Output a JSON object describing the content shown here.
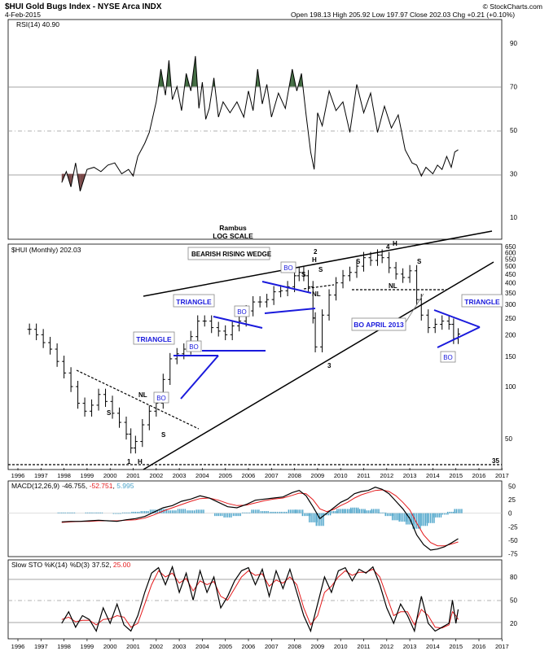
{
  "header": {
    "symbol_title": "$HUI Gold Bugs Index - NYSE Arca INDX",
    "date": "4-Feb-2015",
    "ohlc": "Open 198.13  High 205.92  Low 197.97  Close 202.03  Chg +0.21 (+0.10%)",
    "credit": "© StockCharts.com"
  },
  "colors": {
    "price": "#000000",
    "trendline": "#000000",
    "pattern": "#1a1adc",
    "rsi_overbought_fill": "#3f6a3f",
    "rsi_oversold_fill": "#7a4a4a",
    "macd_signal": "#e41a1c",
    "histogram": "#4aa3c9",
    "sto_d": "#e41a1c"
  },
  "chart_data": [
    {
      "type": "line",
      "panel": "rsi",
      "title": "RSI(14) 40.90",
      "ylim": [
        0,
        100
      ],
      "yticks": [
        10,
        30,
        50,
        70,
        90
      ],
      "reference_lines": [
        30,
        50,
        70
      ],
      "x": [
        1997.9,
        1998.1,
        1998.3,
        1998.5,
        1998.7,
        1999.0,
        1999.3,
        1999.6,
        1999.9,
        2000.2,
        2000.5,
        2000.8,
        2001.0,
        2001.2,
        2001.5,
        2001.7,
        2002.0,
        2002.2,
        2002.4,
        2002.55,
        2002.7,
        2002.9,
        2003.1,
        2003.3,
        2003.5,
        2003.7,
        2003.85,
        2004.0,
        2004.15,
        2004.3,
        2004.5,
        2004.7,
        2004.9,
        2005.2,
        2005.5,
        2005.8,
        2006.0,
        2006.2,
        2006.4,
        2006.6,
        2006.8,
        2007.0,
        2007.3,
        2007.6,
        2007.9,
        2008.1,
        2008.3,
        2008.5,
        2008.7,
        2008.85,
        2009.0,
        2009.2,
        2009.5,
        2009.8,
        2010.1,
        2010.4,
        2010.7,
        2011.0,
        2011.3,
        2011.6,
        2011.9,
        2012.2,
        2012.5,
        2012.8,
        2013.1,
        2013.3,
        2013.5,
        2013.7,
        2014.0,
        2014.2,
        2014.4,
        2014.6,
        2014.8,
        2014.95,
        2015.1
      ],
      "values": [
        26,
        31,
        24,
        35,
        22,
        32,
        33,
        31,
        34,
        35,
        30,
        32,
        29,
        38,
        44,
        49,
        63,
        78,
        66,
        82,
        64,
        70,
        59,
        76,
        68,
        84,
        60,
        72,
        55,
        60,
        74,
        56,
        63,
        58,
        63,
        56,
        68,
        59,
        78,
        62,
        71,
        56,
        67,
        60,
        78,
        68,
        76,
        57,
        40,
        32,
        58,
        52,
        68,
        59,
        63,
        49,
        71,
        58,
        67,
        49,
        61,
        51,
        57,
        41,
        35,
        34,
        29,
        33,
        30,
        34,
        32,
        38,
        33,
        40,
        41
      ]
    },
    {
      "type": "bar",
      "panel": "price",
      "title": "$HUI (Monthly) 202.03",
      "scale": "log",
      "ylim": [
        33,
        650
      ],
      "yticks": [
        50,
        100,
        150,
        200,
        250,
        300,
        350,
        400,
        450,
        500,
        550,
        600,
        650
      ],
      "x": [
        1996.5,
        1996.8,
        1997.1,
        1997.4,
        1997.7,
        1998.0,
        1998.3,
        1998.6,
        1998.9,
        1999.2,
        1999.5,
        1999.8,
        2000.1,
        2000.4,
        2000.7,
        2000.9,
        2001.1,
        2001.4,
        2001.7,
        2002.0,
        2002.3,
        2002.6,
        2002.9,
        2003.2,
        2003.5,
        2003.8,
        2004.1,
        2004.4,
        2004.7,
        2005.0,
        2005.3,
        2005.6,
        2005.9,
        2006.2,
        2006.5,
        2006.8,
        2007.1,
        2007.4,
        2007.7,
        2008.0,
        2008.2,
        2008.4,
        2008.6,
        2008.8,
        2008.9,
        2009.2,
        2009.5,
        2009.8,
        2010.1,
        2010.4,
        2010.7,
        2011.0,
        2011.3,
        2011.6,
        2011.8,
        2012.1,
        2012.4,
        2012.7,
        2013.0,
        2013.3,
        2013.5,
        2013.8,
        2014.1,
        2014.4,
        2014.7,
        2014.9,
        2015.1
      ],
      "values": [
        215,
        200,
        180,
        165,
        140,
        120,
        100,
        80,
        72,
        78,
        90,
        82,
        70,
        62,
        53,
        44,
        48,
        60,
        72,
        80,
        110,
        145,
        155,
        165,
        195,
        240,
        240,
        220,
        210,
        200,
        225,
        240,
        275,
        310,
        310,
        320,
        355,
        360,
        380,
        440,
        460,
        440,
        380,
        250,
        170,
        260,
        340,
        400,
        440,
        460,
        500,
        560,
        540,
        580,
        560,
        490,
        450,
        430,
        470,
        320,
        260,
        220,
        230,
        240,
        230,
        190,
        202
      ]
    },
    {
      "type": "line",
      "panel": "macd",
      "title": "MACD(12,26,9) -46.755, -52.751, 5.995",
      "series": [
        {
          "name": "MACD(12,26,9)",
          "value_label": "-46.755"
        },
        {
          "name": "",
          "value_label": "-52.751"
        },
        {
          "name": "",
          "value_label": "5.995"
        }
      ],
      "ylim": [
        -80,
        55
      ],
      "yticks": [
        50,
        25,
        0,
        -25,
        -50,
        -75
      ],
      "x": [
        1997.9,
        1998.3,
        1998.7,
        1999.1,
        1999.5,
        1999.9,
        2000.3,
        2000.7,
        2001.1,
        2001.5,
        2001.9,
        2002.3,
        2002.7,
        2003.1,
        2003.5,
        2003.9,
        2004.3,
        2004.7,
        2005.1,
        2005.5,
        2005.9,
        2006.3,
        2006.7,
        2007.1,
        2007.5,
        2007.9,
        2008.2,
        2008.5,
        2008.8,
        2009.1,
        2009.4,
        2009.7,
        2010.0,
        2010.3,
        2010.6,
        2010.9,
        2011.2,
        2011.5,
        2011.8,
        2012.1,
        2012.4,
        2012.7,
        2013.0,
        2013.3,
        2013.6,
        2013.9,
        2014.2,
        2014.5,
        2014.8,
        2015.1
      ],
      "values": [
        -16,
        -15,
        -15,
        -14,
        -13,
        -14,
        -15,
        -12,
        -10,
        -6,
        2,
        10,
        14,
        22,
        26,
        32,
        28,
        20,
        12,
        10,
        16,
        24,
        26,
        28,
        30,
        38,
        42,
        32,
        12,
        -10,
        0,
        10,
        20,
        26,
        36,
        40,
        42,
        48,
        44,
        36,
        22,
        8,
        -10,
        -40,
        -58,
        -68,
        -66,
        -62,
        -55,
        -47
      ],
      "signal": [
        -17,
        -16,
        -15,
        -15,
        -14,
        -14,
        -14,
        -13,
        -12,
        -9,
        -3,
        4,
        10,
        16,
        22,
        27,
        28,
        24,
        18,
        14,
        15,
        19,
        23,
        26,
        28,
        33,
        37,
        36,
        25,
        8,
        3,
        7,
        14,
        20,
        28,
        34,
        38,
        42,
        43,
        40,
        32,
        20,
        6,
        -18,
        -40,
        -54,
        -60,
        -60,
        -57,
        -53
      ],
      "histogram": [
        1,
        1,
        0,
        1,
        1,
        0,
        -1,
        1,
        2,
        3,
        5,
        6,
        4,
        6,
        4,
        5,
        0,
        -4,
        -6,
        -4,
        1,
        5,
        3,
        2,
        2,
        5,
        5,
        -4,
        -13,
        -18,
        -3,
        3,
        6,
        6,
        8,
        6,
        4,
        6,
        1,
        -4,
        -10,
        -12,
        -16,
        -22,
        -18,
        -14,
        -6,
        -2,
        2,
        6
      ]
    },
    {
      "type": "line",
      "panel": "stochastic",
      "title": "Slow STO %K(14) %D(3) 37.52, 25.00",
      "series": [
        {
          "name": "Slow STO %K(14)",
          "value_label": "37.52"
        },
        {
          "name": "%D(3)",
          "value_label": "25.00"
        }
      ],
      "ylim": [
        0,
        100
      ],
      "yticks": [
        20,
        50,
        80
      ],
      "reference_lines": [
        20,
        50,
        80
      ],
      "x": [
        1997.9,
        1998.2,
        1998.5,
        1998.8,
        1999.1,
        1999.4,
        1999.7,
        2000.0,
        2000.3,
        2000.6,
        2000.9,
        2001.2,
        2001.5,
        2001.8,
        2002.1,
        2002.4,
        2002.7,
        2003.0,
        2003.3,
        2003.6,
        2003.9,
        2004.2,
        2004.5,
        2004.8,
        2005.1,
        2005.4,
        2005.7,
        2006.0,
        2006.3,
        2006.6,
        2006.9,
        2007.2,
        2007.5,
        2007.8,
        2008.1,
        2008.4,
        2008.7,
        2009.0,
        2009.3,
        2009.6,
        2009.9,
        2010.2,
        2010.5,
        2010.8,
        2011.1,
        2011.4,
        2011.7,
        2012.0,
        2012.3,
        2012.6,
        2012.9,
        2013.2,
        2013.5,
        2013.8,
        2014.1,
        2014.4,
        2014.7,
        2014.85,
        2015.0,
        2015.1
      ],
      "values": [
        20,
        35,
        15,
        30,
        25,
        10,
        40,
        20,
        45,
        18,
        10,
        30,
        60,
        85,
        92,
        70,
        93,
        60,
        85,
        50,
        88,
        60,
        80,
        40,
        55,
        75,
        88,
        92,
        70,
        90,
        55,
        88,
        65,
        90,
        60,
        30,
        10,
        45,
        80,
        60,
        88,
        92,
        75,
        90,
        85,
        93,
        70,
        40,
        20,
        45,
        30,
        10,
        55,
        20,
        10,
        15,
        20,
        50,
        20,
        38
      ],
      "signal": [
        25,
        28,
        22,
        24,
        24,
        18,
        25,
        26,
        30,
        28,
        15,
        20,
        45,
        70,
        88,
        80,
        85,
        72,
        78,
        62,
        75,
        70,
        74,
        55,
        50,
        65,
        80,
        88,
        82,
        84,
        68,
        76,
        72,
        80,
        70,
        40,
        18,
        30,
        60,
        68,
        80,
        88,
        82,
        86,
        86,
        90,
        80,
        55,
        30,
        35,
        35,
        18,
        38,
        30,
        15,
        14,
        18,
        35,
        30,
        25
      ]
    },
    {
      "type": "table",
      "panel": "x-axis",
      "tick_labels": [
        "1996",
        "1997",
        "1998",
        "1999",
        "2000",
        "2001",
        "2002",
        "2003",
        "2004",
        "2005",
        "2006",
        "2007",
        "2008",
        "2009",
        "2010",
        "2011",
        "2012",
        "2013",
        "2014",
        "2015",
        "2016",
        "2017"
      ]
    }
  ],
  "annotations": {
    "rambus": "Rambus",
    "log_scale": "LOG SCALE",
    "bearish_wedge": "BEARISH RISING WEDGE",
    "triangle_1": "TRIANGLE",
    "triangle_2": "TRIANGLE",
    "triangle_3": "TRIANGLE",
    "bo_april_2013": "BO APRIL 2013",
    "bo": "BO",
    "nl": "NL",
    "s": "S",
    "h": "H",
    "one": "1",
    "two": "2",
    "three": "3",
    "four": "4",
    "thirty_five": "35"
  }
}
